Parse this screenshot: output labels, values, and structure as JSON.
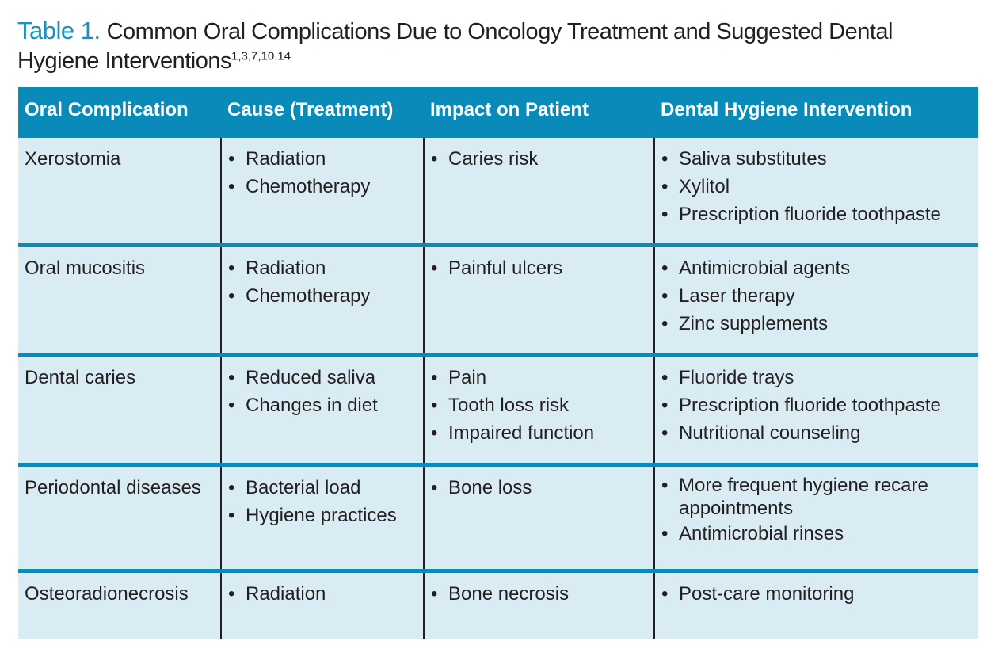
{
  "title": {
    "label": "Table 1.",
    "text": "Common Oral Complications Due to Oncology Treatment and Suggested Dental Hygiene Interventions",
    "refs": "1,3,7,10,14"
  },
  "table": {
    "headers": [
      "Oral Complication",
      "Cause (Treatment)",
      "Impact on Patient",
      "Dental Hygiene Intervention"
    ],
    "rows": [
      {
        "complication": "Xerostomia",
        "cause": [
          "Radiation",
          "Chemotherapy"
        ],
        "impact": [
          "Caries risk"
        ],
        "intervention": [
          "Saliva substitutes",
          "Xylitol",
          "Prescription fluoride toothpaste"
        ]
      },
      {
        "complication": "Oral mucositis",
        "cause": [
          "Radiation",
          "Chemotherapy"
        ],
        "impact": [
          "Painful ulcers"
        ],
        "intervention": [
          "Antimicrobial agents",
          "Laser therapy",
          "Zinc supplements"
        ]
      },
      {
        "complication": "Dental caries",
        "cause": [
          "Reduced saliva",
          "Changes in diet"
        ],
        "impact": [
          "Pain",
          "Tooth loss risk",
          "Impaired function"
        ],
        "intervention": [
          "Fluoride trays",
          "Prescription fluoride toothpaste",
          "Nutritional counseling"
        ]
      },
      {
        "complication": "Periodontal diseases",
        "cause": [
          "Bacterial load",
          "Hygiene practices"
        ],
        "impact": [
          "Bone loss"
        ],
        "intervention": [
          "More frequent hygiene recare appointments",
          "Antimicrobial rinses"
        ]
      },
      {
        "complication": "Osteoradionecrosis",
        "cause": [
          "Radiation"
        ],
        "impact": [
          "Bone necrosis"
        ],
        "intervention": [
          "Post-care monitoring"
        ]
      }
    ]
  },
  "colors": {
    "header_bg": "#0a8ab8",
    "row_bg": "#d9ecf3",
    "title_label": "#1a8fc0"
  }
}
